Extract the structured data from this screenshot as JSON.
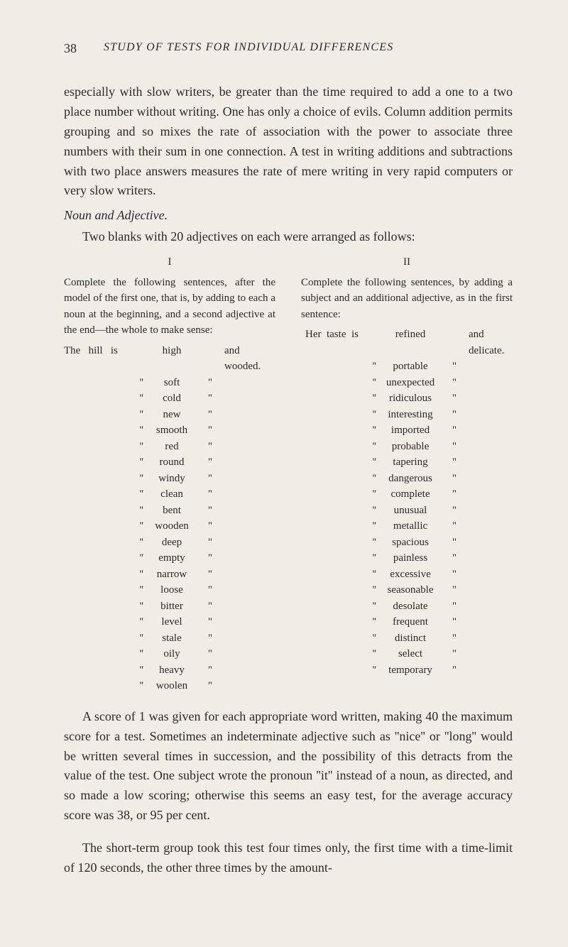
{
  "page_number": "38",
  "running_head": "STUDY OF TESTS FOR INDIVIDUAL DIFFERENCES",
  "paragraph1": "especially with slow writers, be greater than the time required to add a one to a two place number without writing. One has only a choice of evils. Column addition permits grouping and so mixes the rate of association with the power to associate three numbers with their sum in one connection. A test in writing additions and subtractions with two place answers measures the rate of mere writing in very rapid computers or very slow writers.",
  "section_title": "Noun and Adjective.",
  "paragraph2": "Two blanks with 20 adjectives on each were arranged as follows:",
  "col1": {
    "head": "I",
    "desc": "Complete the following sentences, after the model of the first one, that is, by adding to each a noun at the beginning, and a second adjective at the end—the whole to make sense:",
    "lead": "The   hill   is",
    "trail": "and   wooded.",
    "words": [
      "high",
      "soft",
      "cold",
      "new",
      "smooth",
      "red",
      "round",
      "windy",
      "clean",
      "bent",
      "wooden",
      "deep",
      "empty",
      "narrow",
      "loose",
      "bitter",
      "level",
      "stale",
      "oily",
      "heavy",
      "woolen"
    ]
  },
  "col2": {
    "head": "II",
    "desc": "Complete the following sentences, by adding a subject and an additional adjective, as in the first sentence:",
    "lead": "Her  taste  is",
    "trail": "and  delicate.",
    "words": [
      "refined",
      "portable",
      "unexpected",
      "ridiculous",
      "interesting",
      "imported",
      "probable",
      "tapering",
      "dangerous",
      "complete",
      "unusual",
      "metallic",
      "spacious",
      "painless",
      "excessive",
      "seasonable",
      "desolate",
      "frequent",
      "distinct",
      "select",
      "temporary"
    ]
  },
  "closing1": "A score of 1 was given for each appropriate word written, making 40 the maximum score for a test. Sometimes an indeterminate adjective such as ''nice'' or ''long'' would be written several times in succession, and the possibility of this detracts from the value of the test. One subject wrote the pronoun ''it'' instead of a noun, as directed, and so made a low scoring; otherwise this seems an easy test, for the average accuracy score was 38, or 95 per cent.",
  "closing2": "The short-term group took this test four times only, the first time with a time-limit of 120 seconds, the other three times by the amount-",
  "ditto_open": "''",
  "ditto_close": "''"
}
